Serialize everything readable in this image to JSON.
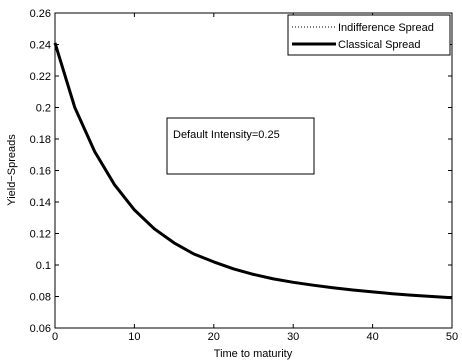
{
  "chart_data": {
    "type": "line",
    "xlabel": "Time to maturity",
    "ylabel": "Yield−Spreads",
    "xlim": [
      0,
      50
    ],
    "ylim": [
      0.06,
      0.26
    ],
    "xticks": [
      0,
      10,
      20,
      30,
      40,
      50
    ],
    "yticks": [
      0.06,
      0.08,
      0.1,
      0.12,
      0.14,
      0.16,
      0.18,
      0.2,
      0.22,
      0.24,
      0.26
    ],
    "xtick_labels": [
      "0",
      "10",
      "20",
      "30",
      "40",
      "50"
    ],
    "ytick_labels": [
      "0.06",
      "0.08",
      "0.1",
      "0.12",
      "0.14",
      "0.16",
      "0.18",
      "0.2",
      "0.22",
      "0.24",
      "0.26"
    ],
    "grid": false,
    "legend_position": "top-right",
    "series": [
      {
        "name": "Indifference Spread",
        "style": "dotted",
        "x": [
          0,
          2.5,
          5,
          7.5,
          10,
          12.5,
          15,
          17.5,
          20,
          22.5,
          25,
          27.5,
          30,
          32.5,
          35,
          37.5,
          40,
          42.5,
          45,
          47.5,
          50
        ],
        "y": [
          0.241,
          0.2,
          0.172,
          0.151,
          0.135,
          0.123,
          0.114,
          0.107,
          0.102,
          0.0975,
          0.094,
          0.0912,
          0.089,
          0.0872,
          0.0856,
          0.0841,
          0.0829,
          0.0818,
          0.0808,
          0.08,
          0.0792
        ]
      },
      {
        "name": "Classical Spread",
        "style": "solid",
        "x": [
          0,
          2.5,
          5,
          7.5,
          10,
          12.5,
          15,
          17.5,
          20,
          22.5,
          25,
          27.5,
          30,
          32.5,
          35,
          37.5,
          40,
          42.5,
          45,
          47.5,
          50
        ],
        "y": [
          0.241,
          0.2,
          0.172,
          0.151,
          0.135,
          0.123,
          0.114,
          0.107,
          0.102,
          0.0975,
          0.094,
          0.0912,
          0.089,
          0.0872,
          0.0856,
          0.0841,
          0.0829,
          0.0818,
          0.0808,
          0.08,
          0.0792
        ]
      }
    ],
    "annotation": "Default Intensity=0.25"
  }
}
